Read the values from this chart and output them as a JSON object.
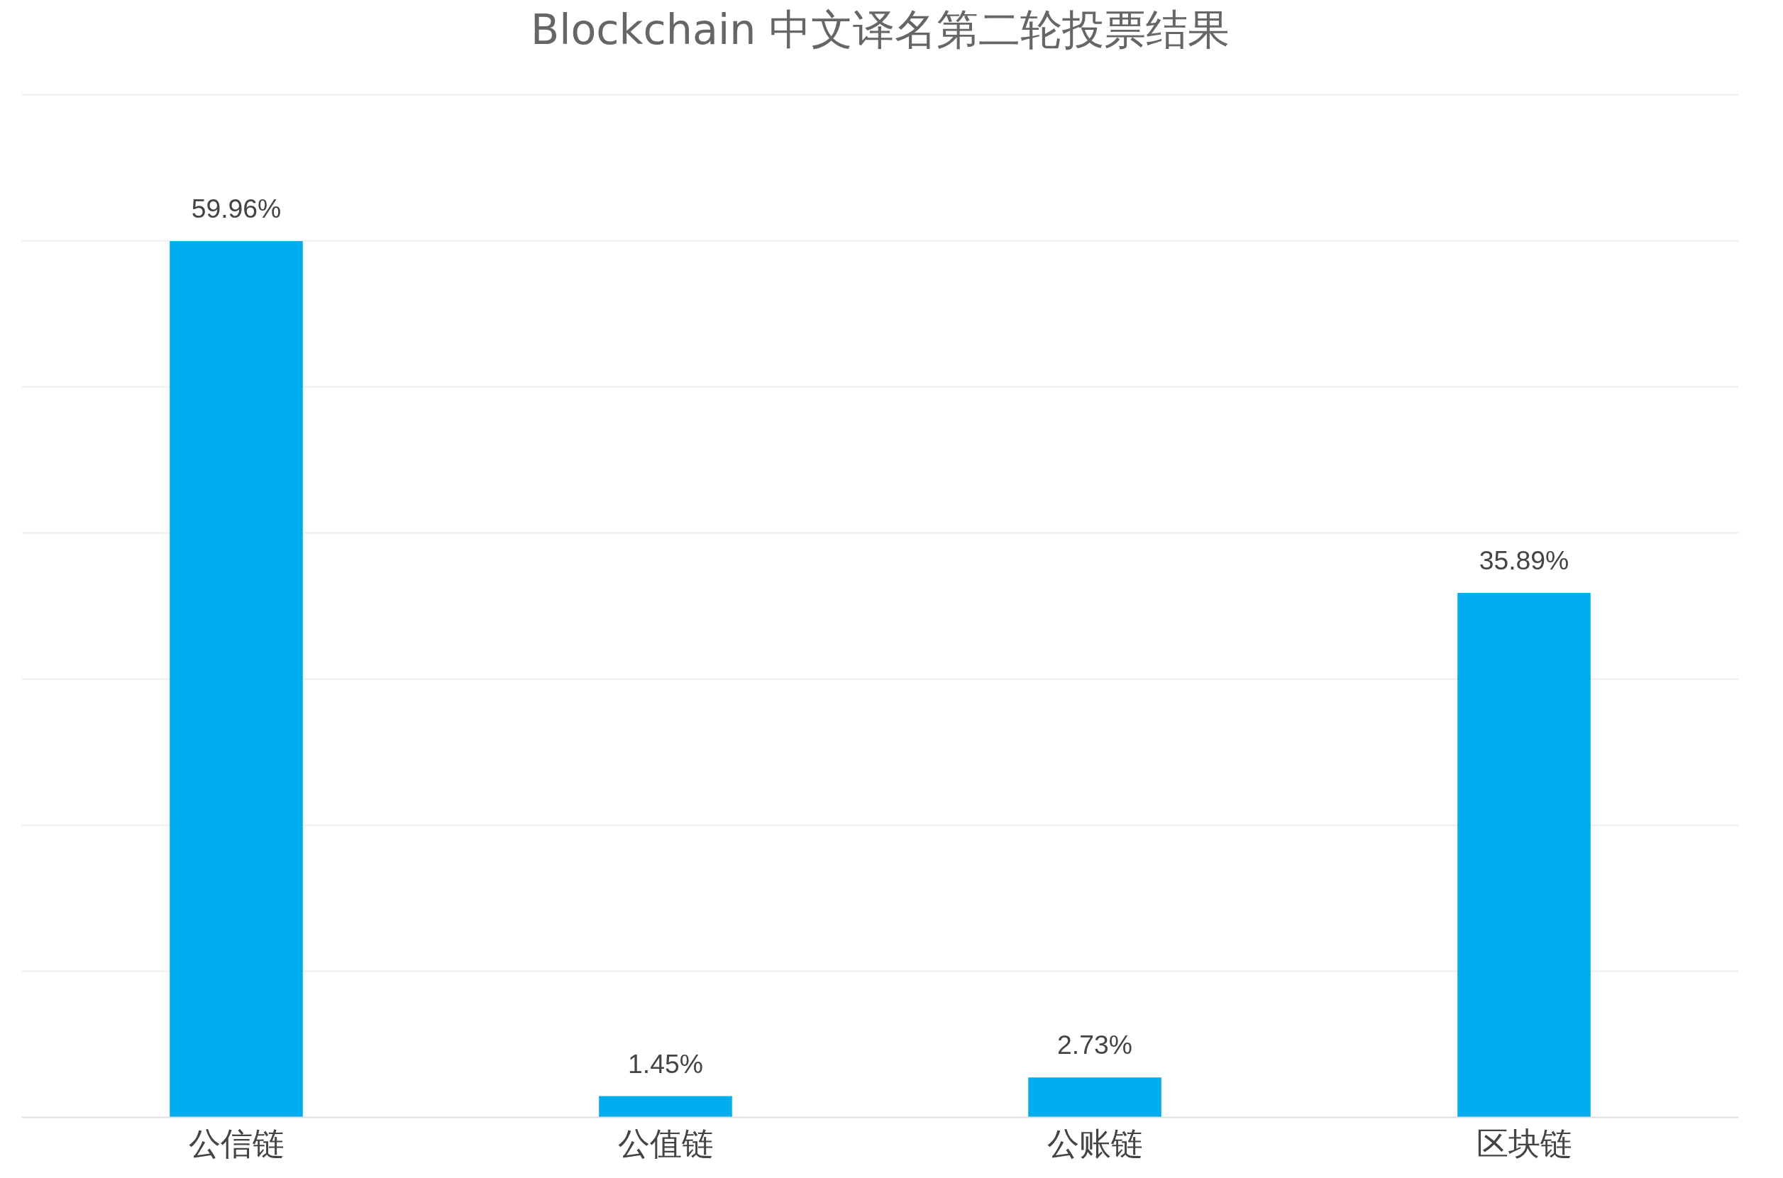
{
  "chart_data": {
    "type": "bar",
    "title": "Blockchain 中文译名第二轮投票结果",
    "categories": [
      "公信链",
      "公值链",
      "公账链",
      "区块链"
    ],
    "values": [
      59.96,
      1.45,
      2.73,
      35.89
    ],
    "color": "#00adee",
    "value_labels": [
      "59.96%",
      "1.45%",
      "2.73%",
      "35.89%"
    ],
    "grid": "y",
    "tick_labels": "x"
  }
}
